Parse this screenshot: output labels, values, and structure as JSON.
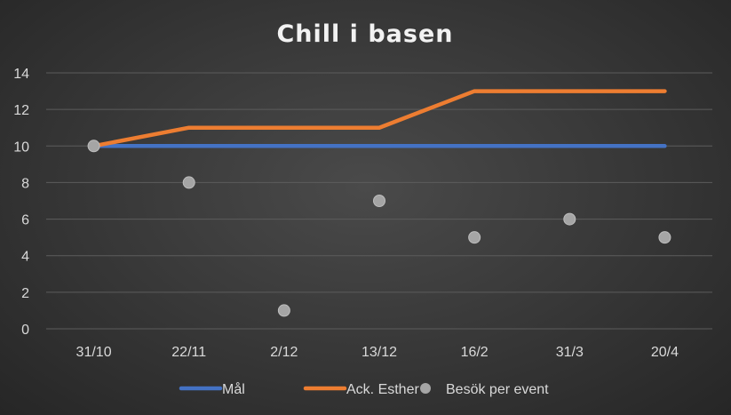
{
  "chart_data": {
    "type": "line",
    "title": "Chill i basen",
    "categories": [
      "31/10",
      "22/11",
      "2/12",
      "13/12",
      "16/2",
      "31/3",
      "20/4"
    ],
    "ylim": [
      0,
      14
    ],
    "yticks": [
      "0",
      "2",
      "4",
      "6",
      "8",
      "10",
      "12",
      "14"
    ],
    "grid": true,
    "legend_position": "bottom",
    "series": [
      {
        "name": "Mål",
        "kind": "line",
        "color": "#4472c4",
        "values": [
          10,
          10,
          10,
          10,
          10,
          10,
          10
        ]
      },
      {
        "name": "Ack. Esther",
        "kind": "line",
        "color": "#ed7d31",
        "values": [
          10,
          11,
          11,
          11,
          13,
          13,
          13
        ]
      },
      {
        "name": "Besök per event",
        "kind": "scatter",
        "color": "#a5a5a5",
        "values": [
          10,
          8,
          1,
          7,
          5,
          6,
          5
        ]
      }
    ]
  }
}
